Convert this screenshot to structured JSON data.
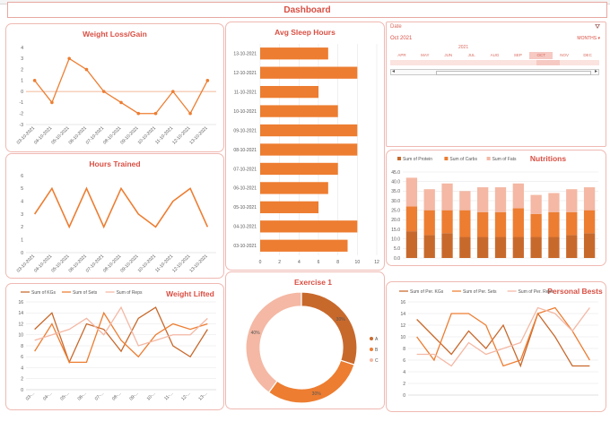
{
  "dashboard_title": "Dashboard",
  "colors": {
    "dark": "#c8692c",
    "orange": "#ed7d31",
    "light": "#f4b8a4",
    "border": "#efb9b2",
    "title": "#d94f43"
  },
  "weight_chart": {
    "title": "Weight Loss/Gain",
    "chart_data": {
      "type": "line",
      "categories": [
        "03-10-2021",
        "04-10-2021",
        "05-10-2021",
        "06-10-2021",
        "07-10-2021",
        "08-10-2021",
        "09-10-2021",
        "10-10-2021",
        "11-10-2021",
        "12-10-2021",
        "13-10-2021"
      ],
      "values": [
        1,
        -1,
        3,
        2,
        0,
        -1,
        -2,
        -2,
        0,
        -2,
        1
      ],
      "ylim": [
        -3,
        4
      ],
      "yticks": [
        "-3",
        "-2",
        "-1",
        "0",
        "1",
        "2",
        "3",
        "4"
      ]
    }
  },
  "hours_chart": {
    "title": "Hours Trained",
    "chart_data": {
      "type": "line",
      "categories": [
        "03-10-2021",
        "04-10-2021",
        "05-10-2021",
        "06-10-2021",
        "07-10-2021",
        "08-10-2021",
        "09-10-2021",
        "10-10-2021",
        "11-10-2021",
        "12-10-2021",
        "13-10-2021"
      ],
      "values": [
        3,
        5,
        2,
        5,
        2,
        5,
        3,
        2,
        4,
        5,
        2
      ],
      "ylim": [
        0,
        6
      ],
      "yticks": [
        "0",
        "1",
        "2",
        "3",
        "4",
        "5",
        "6"
      ]
    }
  },
  "sleep_chart": {
    "title": "Avg Sleep Hours",
    "chart_data": {
      "type": "bar",
      "categories": [
        "13-10-2021",
        "12-10-2021",
        "11-10-2021",
        "10-10-2021",
        "09-10-2021",
        "08-10-2021",
        "07-10-2021",
        "06-10-2021",
        "05-10-2021",
        "04-10-2021",
        "03-10-2021"
      ],
      "values": [
        7,
        10,
        6,
        8,
        10,
        10,
        8,
        7,
        6,
        10,
        9
      ],
      "xlim": [
        0,
        12
      ],
      "xticks": [
        "0",
        "2",
        "4",
        "6",
        "8",
        "10",
        "12"
      ]
    }
  },
  "date_slicer": {
    "header": "Date",
    "filter_icon": "filter-clear-icon",
    "period": "Oct 2021",
    "level": "MONTHS ▾",
    "year": "2021",
    "months": [
      "APR",
      "MAY",
      "JUN",
      "JUL",
      "AUG",
      "SEP",
      "OCT",
      "NOV",
      "DEC"
    ],
    "selected_month": "OCT",
    "scroll_left": "◂",
    "scroll_right": "▸"
  },
  "nutrition_chart": {
    "title": "Nutritions",
    "chart_data": {
      "type": "bar",
      "stacked": true,
      "categories": [
        "",
        "",
        "",
        "",
        "",
        "",
        "",
        "",
        "",
        "",
        ""
      ],
      "series": [
        {
          "name": "Sum of Protein",
          "color": "#c8692c",
          "values": [
            14,
            12,
            13,
            11,
            11,
            11,
            11,
            11,
            11,
            12,
            13
          ]
        },
        {
          "name": "Sum of Carbs",
          "color": "#ed7d31",
          "values": [
            13,
            13,
            12,
            14,
            13,
            13,
            15,
            12,
            13,
            12,
            12
          ]
        },
        {
          "name": "Sum of Fats",
          "color": "#f4b8a4",
          "values": [
            15,
            11,
            14,
            10,
            13,
            13,
            13,
            10,
            10,
            12,
            12
          ]
        }
      ],
      "ylim": [
        0,
        45
      ],
      "yticks": [
        "0.0",
        "5.0",
        "10.0",
        "15.0",
        "20.0",
        "25.0",
        "30.0",
        "35.0",
        "40.0",
        "45.0"
      ]
    }
  },
  "lifted_chart": {
    "title": "Weight Lifted",
    "chart_data": {
      "type": "line",
      "categories": [
        "03-...",
        "04-...",
        "05-...",
        "06-...",
        "07-...",
        "08-...",
        "09-...",
        "10-...",
        "11-...",
        "12-...",
        "13-..."
      ],
      "series": [
        {
          "name": "Sum of KGs",
          "color": "#c8692c",
          "values": [
            11,
            14,
            5,
            12,
            11,
            7,
            13,
            15,
            8,
            6,
            11
          ]
        },
        {
          "name": "Sum of Sets",
          "color": "#ed7d31",
          "values": [
            7,
            12,
            5,
            5,
            14,
            9,
            6,
            10,
            12,
            11,
            12
          ]
        },
        {
          "name": "Sum of Reps",
          "color": "#f4b8a4",
          "values": [
            9,
            10,
            11,
            13,
            10,
            15,
            8,
            9,
            10,
            10,
            13
          ]
        }
      ],
      "ylim": [
        0,
        16
      ],
      "yticks": [
        "0",
        "2",
        "4",
        "6",
        "8",
        "10",
        "12",
        "14",
        "16"
      ]
    }
  },
  "exercise_chart": {
    "title": "Exercise 1",
    "chart_data": {
      "type": "pie",
      "labels": [
        "A",
        "B",
        "C"
      ],
      "values": [
        30,
        30,
        40
      ],
      "data_labels": [
        "30%",
        "30%",
        "40%"
      ],
      "colors": [
        "#c8692c",
        "#ed7d31",
        "#f4b8a4"
      ]
    }
  },
  "bests_chart": {
    "title": "Personal Bests",
    "chart_data": {
      "type": "line",
      "categories": [
        "",
        "",
        "",
        "",
        "",
        "",
        "",
        "",
        "",
        "",
        ""
      ],
      "series": [
        {
          "name": "Sum of Per. KGs",
          "color": "#c8692c",
          "values": [
            13,
            10,
            7,
            11,
            8,
            12,
            5,
            14,
            10,
            5,
            5
          ]
        },
        {
          "name": "Sum of Per. Sets",
          "color": "#ed7d31",
          "values": [
            10,
            6,
            14,
            14,
            12,
            5,
            6,
            14,
            15,
            11,
            6
          ]
        },
        {
          "name": "Sum of Per. Reps",
          "color": "#f4b8a4",
          "values": [
            7,
            7,
            5,
            9,
            7,
            8,
            9,
            15,
            14,
            11,
            15
          ]
        }
      ],
      "ylim": [
        0,
        16
      ],
      "yticks": [
        "0",
        "2",
        "4",
        "6",
        "8",
        "10",
        "12",
        "14",
        "16"
      ]
    }
  }
}
